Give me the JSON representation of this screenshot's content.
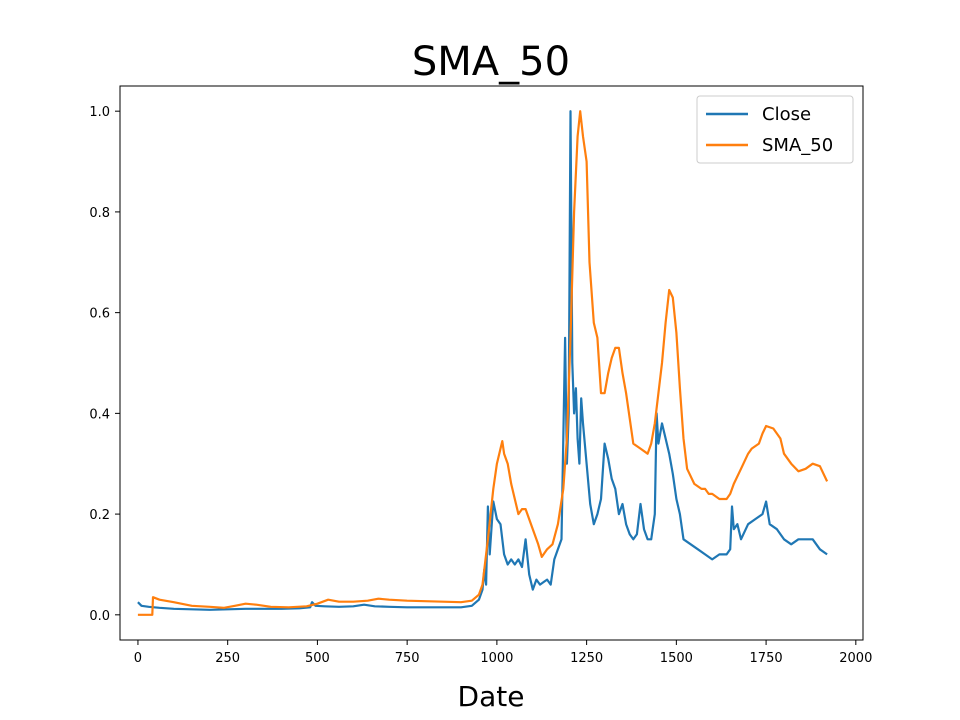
{
  "chart_data": {
    "type": "line",
    "title": "SMA_50",
    "xlabel": "Date",
    "ylabel": "",
    "xlim": [
      -50,
      2020
    ],
    "ylim": [
      -0.05,
      1.05
    ],
    "xticks": [
      0,
      250,
      500,
      750,
      1000,
      1250,
      1500,
      1750,
      2000
    ],
    "yticks": [
      0.0,
      0.2,
      0.4,
      0.6,
      0.8,
      1.0
    ],
    "xtick_labels": [
      "0",
      "250",
      "500",
      "750",
      "1000",
      "1250",
      "1500",
      "1750",
      "2000"
    ],
    "ytick_labels": [
      "0.0",
      "0.2",
      "0.4",
      "0.6",
      "0.8",
      "1.0"
    ],
    "grid": false,
    "legend": "top-right",
    "series": [
      {
        "name": "Close",
        "color": "#1f77b4",
        "points": [
          [
            0,
            0.025
          ],
          [
            10,
            0.018
          ],
          [
            30,
            0.016
          ],
          [
            60,
            0.014
          ],
          [
            100,
            0.012
          ],
          [
            150,
            0.011
          ],
          [
            200,
            0.01
          ],
          [
            250,
            0.011
          ],
          [
            300,
            0.012
          ],
          [
            350,
            0.012
          ],
          [
            400,
            0.012
          ],
          [
            450,
            0.013
          ],
          [
            480,
            0.015
          ],
          [
            485,
            0.025
          ],
          [
            495,
            0.018
          ],
          [
            520,
            0.017
          ],
          [
            560,
            0.016
          ],
          [
            600,
            0.017
          ],
          [
            630,
            0.02
          ],
          [
            660,
            0.017
          ],
          [
            700,
            0.016
          ],
          [
            750,
            0.015
          ],
          [
            800,
            0.015
          ],
          [
            850,
            0.015
          ],
          [
            900,
            0.015
          ],
          [
            930,
            0.018
          ],
          [
            950,
            0.03
          ],
          [
            960,
            0.05
          ],
          [
            965,
            0.09
          ],
          [
            970,
            0.06
          ],
          [
            975,
            0.215
          ],
          [
            980,
            0.12
          ],
          [
            990,
            0.225
          ],
          [
            1000,
            0.19
          ],
          [
            1010,
            0.18
          ],
          [
            1020,
            0.12
          ],
          [
            1030,
            0.1
          ],
          [
            1040,
            0.11
          ],
          [
            1050,
            0.1
          ],
          [
            1060,
            0.11
          ],
          [
            1070,
            0.095
          ],
          [
            1080,
            0.15
          ],
          [
            1090,
            0.08
          ],
          [
            1100,
            0.05
          ],
          [
            1110,
            0.07
          ],
          [
            1120,
            0.06
          ],
          [
            1130,
            0.065
          ],
          [
            1140,
            0.07
          ],
          [
            1150,
            0.06
          ],
          [
            1160,
            0.11
          ],
          [
            1170,
            0.13
          ],
          [
            1180,
            0.15
          ],
          [
            1185,
            0.35
          ],
          [
            1190,
            0.55
          ],
          [
            1195,
            0.3
          ],
          [
            1200,
            0.4
          ],
          [
            1205,
            1.0
          ],
          [
            1210,
            0.5
          ],
          [
            1215,
            0.4
          ],
          [
            1220,
            0.45
          ],
          [
            1225,
            0.35
          ],
          [
            1230,
            0.3
          ],
          [
            1235,
            0.43
          ],
          [
            1240,
            0.38
          ],
          [
            1250,
            0.3
          ],
          [
            1260,
            0.22
          ],
          [
            1270,
            0.18
          ],
          [
            1280,
            0.2
          ],
          [
            1290,
            0.23
          ],
          [
            1300,
            0.34
          ],
          [
            1310,
            0.31
          ],
          [
            1320,
            0.27
          ],
          [
            1330,
            0.25
          ],
          [
            1340,
            0.2
          ],
          [
            1350,
            0.22
          ],
          [
            1360,
            0.18
          ],
          [
            1370,
            0.16
          ],
          [
            1380,
            0.15
          ],
          [
            1390,
            0.16
          ],
          [
            1400,
            0.22
          ],
          [
            1410,
            0.17
          ],
          [
            1420,
            0.15
          ],
          [
            1430,
            0.15
          ],
          [
            1440,
            0.2
          ],
          [
            1445,
            0.4
          ],
          [
            1450,
            0.34
          ],
          [
            1460,
            0.38
          ],
          [
            1470,
            0.35
          ],
          [
            1480,
            0.32
          ],
          [
            1490,
            0.28
          ],
          [
            1500,
            0.23
          ],
          [
            1510,
            0.2
          ],
          [
            1520,
            0.15
          ],
          [
            1540,
            0.14
          ],
          [
            1560,
            0.13
          ],
          [
            1580,
            0.12
          ],
          [
            1600,
            0.11
          ],
          [
            1620,
            0.12
          ],
          [
            1640,
            0.12
          ],
          [
            1650,
            0.13
          ],
          [
            1655,
            0.215
          ],
          [
            1660,
            0.17
          ],
          [
            1670,
            0.18
          ],
          [
            1680,
            0.15
          ],
          [
            1700,
            0.18
          ],
          [
            1720,
            0.19
          ],
          [
            1740,
            0.2
          ],
          [
            1750,
            0.225
          ],
          [
            1760,
            0.18
          ],
          [
            1780,
            0.17
          ],
          [
            1800,
            0.15
          ],
          [
            1820,
            0.14
          ],
          [
            1840,
            0.15
          ],
          [
            1860,
            0.15
          ],
          [
            1880,
            0.15
          ],
          [
            1900,
            0.13
          ],
          [
            1920,
            0.12
          ]
        ]
      },
      {
        "name": "SMA_50",
        "color": "#ff7f0e",
        "points": [
          [
            0,
            0.0
          ],
          [
            20,
            0.0
          ],
          [
            40,
            0.0
          ],
          [
            42,
            0.035
          ],
          [
            60,
            0.03
          ],
          [
            100,
            0.025
          ],
          [
            150,
            0.018
          ],
          [
            200,
            0.016
          ],
          [
            240,
            0.014
          ],
          [
            270,
            0.018
          ],
          [
            300,
            0.022
          ],
          [
            330,
            0.02
          ],
          [
            370,
            0.016
          ],
          [
            420,
            0.015
          ],
          [
            470,
            0.017
          ],
          [
            500,
            0.022
          ],
          [
            530,
            0.03
          ],
          [
            560,
            0.026
          ],
          [
            600,
            0.026
          ],
          [
            640,
            0.028
          ],
          [
            670,
            0.032
          ],
          [
            700,
            0.03
          ],
          [
            750,
            0.028
          ],
          [
            800,
            0.027
          ],
          [
            850,
            0.026
          ],
          [
            900,
            0.025
          ],
          [
            930,
            0.028
          ],
          [
            950,
            0.04
          ],
          [
            960,
            0.06
          ],
          [
            975,
            0.15
          ],
          [
            990,
            0.25
          ],
          [
            1000,
            0.3
          ],
          [
            1010,
            0.33
          ],
          [
            1015,
            0.345
          ],
          [
            1020,
            0.32
          ],
          [
            1030,
            0.3
          ],
          [
            1040,
            0.26
          ],
          [
            1050,
            0.23
          ],
          [
            1060,
            0.2
          ],
          [
            1070,
            0.21
          ],
          [
            1080,
            0.21
          ],
          [
            1100,
            0.17
          ],
          [
            1115,
            0.14
          ],
          [
            1125,
            0.115
          ],
          [
            1140,
            0.13
          ],
          [
            1155,
            0.14
          ],
          [
            1170,
            0.18
          ],
          [
            1185,
            0.25
          ],
          [
            1195,
            0.35
          ],
          [
            1205,
            0.55
          ],
          [
            1215,
            0.8
          ],
          [
            1225,
            0.95
          ],
          [
            1232,
            1.0
          ],
          [
            1240,
            0.95
          ],
          [
            1250,
            0.9
          ],
          [
            1258,
            0.7
          ],
          [
            1270,
            0.58
          ],
          [
            1280,
            0.55
          ],
          [
            1290,
            0.44
          ],
          [
            1300,
            0.44
          ],
          [
            1310,
            0.48
          ],
          [
            1320,
            0.51
          ],
          [
            1330,
            0.53
          ],
          [
            1340,
            0.53
          ],
          [
            1350,
            0.48
          ],
          [
            1360,
            0.44
          ],
          [
            1370,
            0.39
          ],
          [
            1380,
            0.34
          ],
          [
            1400,
            0.33
          ],
          [
            1420,
            0.32
          ],
          [
            1430,
            0.34
          ],
          [
            1440,
            0.38
          ],
          [
            1450,
            0.44
          ],
          [
            1460,
            0.5
          ],
          [
            1470,
            0.58
          ],
          [
            1480,
            0.645
          ],
          [
            1490,
            0.63
          ],
          [
            1500,
            0.56
          ],
          [
            1510,
            0.45
          ],
          [
            1520,
            0.35
          ],
          [
            1530,
            0.29
          ],
          [
            1540,
            0.275
          ],
          [
            1550,
            0.26
          ],
          [
            1570,
            0.25
          ],
          [
            1580,
            0.25
          ],
          [
            1590,
            0.24
          ],
          [
            1600,
            0.24
          ],
          [
            1620,
            0.23
          ],
          [
            1640,
            0.23
          ],
          [
            1650,
            0.24
          ],
          [
            1660,
            0.26
          ],
          [
            1680,
            0.29
          ],
          [
            1700,
            0.32
          ],
          [
            1710,
            0.33
          ],
          [
            1730,
            0.34
          ],
          [
            1740,
            0.36
          ],
          [
            1750,
            0.375
          ],
          [
            1770,
            0.37
          ],
          [
            1790,
            0.35
          ],
          [
            1800,
            0.32
          ],
          [
            1820,
            0.3
          ],
          [
            1840,
            0.285
          ],
          [
            1860,
            0.29
          ],
          [
            1880,
            0.3
          ],
          [
            1900,
            0.295
          ],
          [
            1920,
            0.265
          ]
        ]
      }
    ]
  }
}
